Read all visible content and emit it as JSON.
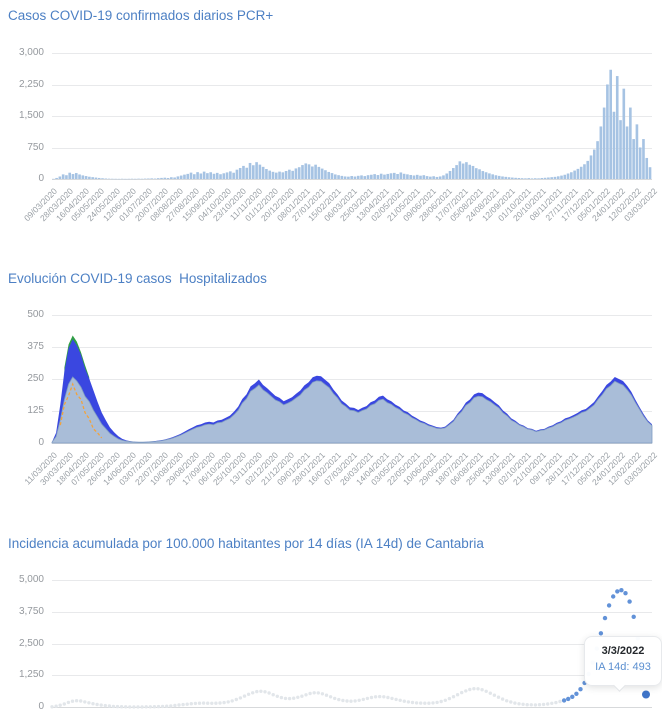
{
  "chart_data": [
    {
      "type": "bar",
      "title": "Casos COVID-19 confirmados diarios PCR+",
      "ylabel": "",
      "y_ticks": [
        "3,000",
        "2,250",
        "1,500",
        "750",
        "0"
      ],
      "y_max": 3000,
      "ylim": [
        0,
        3000
      ],
      "grid": true,
      "color": "#a6c3e3",
      "x_labels": [
        "09/03/2020",
        "28/03/2020",
        "16/04/2020",
        "05/05/2020",
        "24/05/2020",
        "12/06/2020",
        "01/07/2020",
        "20/07/2020",
        "08/08/2020",
        "27/08/2020",
        "15/09/2020",
        "04/10/2020",
        "23/10/2020",
        "11/11/2020",
        "01/12/2020",
        "20/12/2020",
        "08/01/2021",
        "27/01/2021",
        "15/02/2021",
        "06/03/2021",
        "25/03/2021",
        "13/04/2021",
        "02/05/2021",
        "21/05/2021",
        "09/06/2021",
        "28/06/2021",
        "17/07/2021",
        "05/08/2021",
        "24/08/2021",
        "12/09/2021",
        "01/10/2021",
        "20/10/2021",
        "08/11/2021",
        "27/11/2021",
        "17/12/2021",
        "05/01/2022",
        "24/01/2022",
        "12/02/2022",
        "03/03/2022"
      ],
      "values": [
        4,
        25,
        60,
        110,
        90,
        150,
        118,
        142,
        108,
        86,
        70,
        54,
        44,
        34,
        25,
        18,
        12,
        8,
        6,
        5,
        4,
        6,
        4,
        5,
        7,
        5,
        8,
        6,
        10,
        12,
        15,
        11,
        20,
        26,
        31,
        24,
        42,
        36,
        62,
        82,
        104,
        122,
        152,
        114,
        163,
        131,
        176,
        139,
        161,
        124,
        146,
        114,
        136,
        157,
        182,
        149,
        222,
        262,
        312,
        268,
        382,
        328,
        401,
        342,
        289,
        238,
        199,
        171,
        152,
        176,
        159,
        191,
        222,
        194,
        252,
        281,
        332,
        371,
        349,
        298,
        341,
        288,
        248,
        209,
        168,
        141,
        109,
        91,
        74,
        61,
        56,
        71,
        59,
        76,
        86,
        69,
        91,
        101,
        116,
        94,
        126,
        104,
        121,
        136,
        146,
        119,
        156,
        124,
        111,
        96,
        84,
        99,
        79,
        91,
        69,
        56,
        66,
        49,
        61,
        86,
        131,
        191,
        261,
        331,
        421,
        368,
        401,
        339,
        311,
        258,
        231,
        189,
        161,
        134,
        111,
        89,
        74,
        61,
        51,
        42,
        34,
        28,
        24,
        19,
        16,
        21,
        14,
        18,
        16,
        24,
        29,
        36,
        43,
        51,
        64,
        81,
        101,
        131,
        161,
        201,
        241,
        291,
        351,
        431,
        561,
        701,
        901,
        1251,
        1701,
        2251,
        2601,
        1601,
        2451,
        1401,
        2151,
        1251,
        1701,
        951,
        1301,
        751,
        951,
        501,
        281
      ]
    },
    {
      "type": "area",
      "title": "Evolución COVID-19 casos  Hospitalizados",
      "y_ticks": [
        "500",
        "375",
        "250",
        "125",
        "0"
      ],
      "y_max": 500,
      "ylim": [
        0,
        500
      ],
      "grid": true,
      "n_points": 146,
      "x_labels": [
        "11/03/2020",
        "30/03/2020",
        "18/04/2020",
        "07/05/2020",
        "26/05/2020",
        "14/06/2020",
        "03/07/2020",
        "22/07/2020",
        "10/08/2020",
        "29/08/2020",
        "17/09/2020",
        "06/10/2020",
        "25/10/2020",
        "13/11/2020",
        "02/12/2020",
        "21/12/2020",
        "09/01/2021",
        "28/01/2021",
        "16/02/2021",
        "07/03/2021",
        "26/03/2021",
        "14/04/2021",
        "03/05/2021",
        "22/05/2021",
        "10/06/2021",
        "29/06/2021",
        "18/07/2021",
        "06/08/2021",
        "25/08/2021",
        "13/09/2021",
        "02/10/2021",
        "21/10/2021",
        "09/11/2021",
        "28/11/2021",
        "17/12/2021",
        "05/01/2022",
        "24/01/2022",
        "12/02/2022",
        "03/03/2022"
      ],
      "series": [
        {
          "name": "green-series",
          "style": "area",
          "color": "#2f9e44",
          "values": [
            null,
            null,
            null,
            295,
            385,
            420,
            396,
            354,
            303,
            257
          ]
        },
        {
          "name": "blue-series",
          "style": "area",
          "color": "#3a47e0",
          "values": [
            4,
            40,
            150,
            280,
            370,
            405,
            382,
            344,
            291,
            252,
            206,
            161,
            119,
            89,
            61,
            42,
            27,
            16,
            10,
            7,
            5,
            4,
            4,
            5,
            6,
            8,
            10,
            13,
            17,
            22,
            28,
            35,
            44,
            53,
            61,
            69,
            73,
            80,
            83,
            80,
            88,
            91,
            99,
            107,
            123,
            142,
            172,
            190,
            221,
            233,
            248,
            227,
            214,
            199,
            184,
            176,
            163,
            171,
            179,
            192,
            205,
            225,
            237,
            257,
            263,
            261,
            247,
            234,
            209,
            190,
            166,
            154,
            139,
            137,
            129,
            138,
            144,
            159,
            166,
            181,
            185,
            171,
            163,
            150,
            141,
            127,
            120,
            107,
            98,
            88,
            82,
            73,
            68,
            62,
            60,
            64,
            77,
            91,
            115,
            133,
            158,
            170,
            190,
            197,
            195,
            182,
            173,
            159,
            147,
            127,
            114,
            96,
            87,
            74,
            68,
            58,
            55,
            48,
            53,
            55,
            64,
            69,
            79,
            85,
            96,
            101,
            109,
            117,
            128,
            133,
            146,
            160,
            183,
            203,
            227,
            240,
            258,
            250,
            242,
            223,
            200,
            169,
            140,
            112,
            88,
            73
          ]
        },
        {
          "name": "light-blue-series",
          "style": "area",
          "color": "#a9bdd8",
          "stroke": "#7f9cc2",
          "values": [
            3,
            25,
            90,
            170,
            230,
            258,
            242,
            218,
            182,
            162,
            128,
            102,
            74,
            56,
            38,
            26,
            16,
            10,
            7,
            5,
            4,
            3,
            3,
            4,
            5,
            6,
            8,
            10,
            14,
            18,
            24,
            30,
            38,
            46,
            54,
            61,
            65,
            71,
            74,
            71,
            79,
            81,
            89,
            96,
            111,
            128,
            156,
            173,
            202,
            213,
            227,
            208,
            196,
            182,
            168,
            161,
            149,
            156,
            164,
            176,
            188,
            207,
            218,
            237,
            243,
            241,
            228,
            216,
            193,
            176,
            153,
            142,
            128,
            126,
            119,
            127,
            133,
            147,
            153,
            167,
            171,
            158,
            151,
            139,
            131,
            118,
            111,
            99,
            91,
            81,
            76,
            67,
            63,
            57,
            56,
            59,
            71,
            84,
            107,
            123,
            147,
            158,
            177,
            183,
            181,
            169,
            161,
            148,
            137,
            118,
            106,
            89,
            81,
            69,
            63,
            54,
            51,
            44,
            49,
            51,
            59,
            64,
            73,
            79,
            89,
            94,
            101,
            109,
            119,
            124,
            136,
            149,
            171,
            189,
            212,
            224,
            241,
            233,
            226,
            208,
            187,
            158,
            131,
            104,
            82,
            68
          ]
        },
        {
          "name": "orange-dashed-series",
          "style": "dashed-line",
          "color": "#f2a33c",
          "values": [
            null,
            null,
            70,
            150,
            185,
            230,
            190,
            170,
            118,
            95,
            55,
            40,
            20
          ]
        }
      ]
    },
    {
      "type": "scatter",
      "title": "Incidencia acumulada por 100.000 habitantes por 14 días (IA 14d) de Cantabria",
      "y_ticks": [
        "5,000",
        "3,750",
        "2,500",
        "1,250",
        "0"
      ],
      "y_max": 5000,
      "ylim": [
        0,
        5000
      ],
      "grid": true,
      "n_points": 146,
      "color_old": "#e2e6ea",
      "color_recent": "#6292d8",
      "color_selected": "#3f74c8",
      "blue_from": 125,
      "values": [
        8,
        30,
        70,
        120,
        180,
        230,
        250,
        235,
        200,
        165,
        130,
        100,
        75,
        55,
        38,
        25,
        16,
        10,
        7,
        5,
        4,
        4,
        5,
        6,
        8,
        12,
        17,
        24,
        33,
        45,
        60,
        78,
        95,
        112,
        128,
        140,
        148,
        152,
        150,
        145,
        148,
        158,
        175,
        200,
        240,
        295,
        360,
        430,
        500,
        560,
        605,
        620,
        600,
        550,
        485,
        420,
        370,
        340,
        330,
        345,
        380,
        425,
        480,
        530,
        560,
        555,
        520,
        465,
        400,
        340,
        290,
        255,
        235,
        230,
        240,
        265,
        300,
        340,
        375,
        400,
        410,
        400,
        375,
        340,
        300,
        262,
        228,
        200,
        178,
        162,
        152,
        148,
        150,
        160,
        180,
        215,
        265,
        330,
        405,
        485,
        565,
        635,
        690,
        720,
        715,
        680,
        620,
        545,
        465,
        385,
        310,
        245,
        195,
        155,
        125,
        105,
        92,
        85,
        84,
        90,
        102,
        120,
        145,
        175,
        215,
        260,
        320,
        400,
        520,
        700,
        950,
        1300,
        1750,
        2300,
        2900,
        3500,
        4000,
        4350,
        4550,
        4600,
        4480,
        4150,
        3550,
        2700,
        1500,
        493
      ],
      "tooltip": {
        "date": "3/3/2022",
        "value_label": "IA 14d: 493"
      }
    }
  ]
}
